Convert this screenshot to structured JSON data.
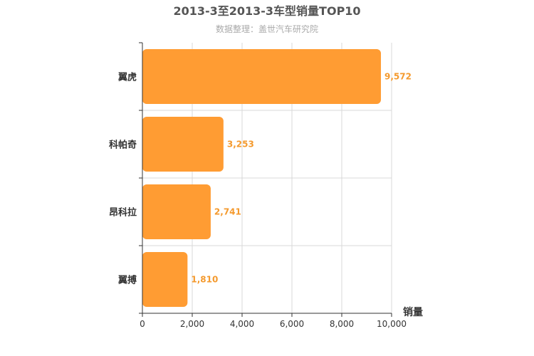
{
  "chart_data": {
    "type": "bar",
    "orientation": "horizontal",
    "title": "2013-3至2013-3车型销量TOP10",
    "subtitle": "数据整理：盖世汽车研究院",
    "categories": [
      "翼虎",
      "科帕奇",
      "昂科拉",
      "翼搏"
    ],
    "values": [
      9572,
      3253,
      2741,
      1810
    ],
    "value_labels": [
      "9,572",
      "3,253",
      "2,741",
      "1,810"
    ],
    "xlabel": "销量",
    "ylabel": "",
    "xlim": [
      0,
      10000
    ],
    "x_ticks": [
      0,
      2000,
      4000,
      6000,
      8000,
      10000
    ],
    "x_tick_labels": [
      "0",
      "2,000",
      "4,000",
      "6,000",
      "8,000",
      "10,000"
    ],
    "bar_color": "#ff9c33",
    "label_color": "#f49a2e",
    "grid": true,
    "legend": "none"
  }
}
